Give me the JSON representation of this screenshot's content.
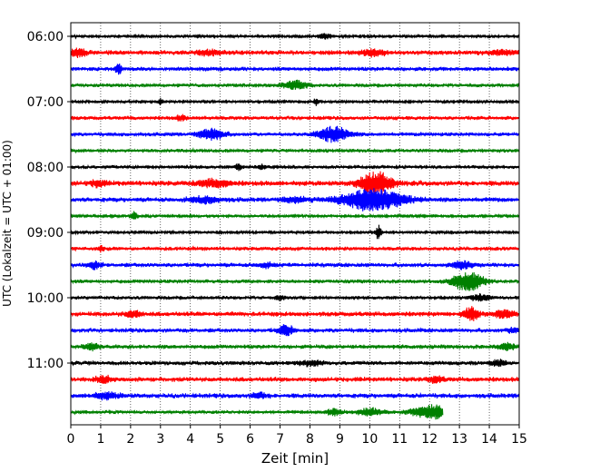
{
  "chart_data": {
    "type": "line",
    "title": "",
    "xlabel": "Zeit  [min]",
    "ylabel": "UTC (Lokalzeit = UTC + 01:00)",
    "xlim": [
      0,
      15
    ],
    "x_ticks": [
      0,
      1,
      2,
      3,
      4,
      5,
      6,
      7,
      8,
      9,
      10,
      11,
      12,
      13,
      14,
      15
    ],
    "y_ticks": [
      "06:00",
      "07:00",
      "08:00",
      "09:00",
      "10:00",
      "11:00"
    ],
    "grid": "vertical dotted",
    "trace_interval_min": 15,
    "first_trace": "06:00",
    "colors": {
      "black": "#000000",
      "red": "#ff0000",
      "blue": "#0000ff",
      "green": "#008000"
    },
    "color_cycle": [
      "black",
      "red",
      "blue",
      "green"
    ],
    "traces": [
      {
        "start": "06:00",
        "color": "black",
        "noise": 0.35,
        "events": [
          [
            8.5,
            0.7,
            0.25
          ]
        ]
      },
      {
        "start": "06:15",
        "color": "red",
        "noise": 0.55,
        "events": [
          [
            0.25,
            1.0,
            0.3
          ],
          [
            4.6,
            0.6,
            0.5
          ],
          [
            10.1,
            0.8,
            0.5
          ],
          [
            14.5,
            0.5,
            0.6
          ]
        ]
      },
      {
        "start": "06:30",
        "color": "blue",
        "noise": 0.5,
        "events": [
          [
            1.6,
            1.3,
            0.12
          ]
        ]
      },
      {
        "start": "06:45",
        "color": "green",
        "noise": 0.4,
        "events": [
          [
            7.5,
            1.2,
            0.5
          ]
        ]
      },
      {
        "start": "07:00",
        "color": "black",
        "noise": 0.35,
        "events": [
          [
            3.0,
            0.8,
            0.1
          ],
          [
            8.2,
            0.9,
            0.1
          ]
        ]
      },
      {
        "start": "07:15",
        "color": "red",
        "noise": 0.45,
        "events": [
          [
            3.7,
            0.7,
            0.2
          ]
        ]
      },
      {
        "start": "07:30",
        "color": "blue",
        "noise": 0.45,
        "events": [
          [
            4.7,
            1.6,
            0.5
          ],
          [
            8.8,
            2.2,
            0.6
          ]
        ]
      },
      {
        "start": "07:45",
        "color": "green",
        "noise": 0.4,
        "events": []
      },
      {
        "start": "08:00",
        "color": "black",
        "noise": 0.4,
        "events": [
          [
            5.6,
            0.8,
            0.15
          ],
          [
            6.4,
            0.6,
            0.2
          ]
        ]
      },
      {
        "start": "08:15",
        "color": "red",
        "noise": 0.6,
        "events": [
          [
            0.9,
            0.8,
            0.3
          ],
          [
            4.8,
            1.0,
            0.6
          ],
          [
            10.2,
            3.4,
            0.6
          ]
        ]
      },
      {
        "start": "08:30",
        "color": "blue",
        "noise": 0.55,
        "events": [
          [
            4.5,
            0.8,
            0.6
          ],
          [
            7.5,
            0.7,
            0.5
          ],
          [
            10.1,
            3.2,
            1.2
          ]
        ]
      },
      {
        "start": "08:45",
        "color": "green",
        "noise": 0.35,
        "events": [
          [
            2.1,
            1.1,
            0.15
          ]
        ]
      },
      {
        "start": "09:00",
        "color": "black",
        "noise": 0.35,
        "events": [
          [
            10.3,
            2.2,
            0.1
          ]
        ]
      },
      {
        "start": "09:15",
        "color": "red",
        "noise": 0.45,
        "events": [
          [
            1.0,
            0.8,
            0.1
          ]
        ]
      },
      {
        "start": "09:30",
        "color": "blue",
        "noise": 0.5,
        "events": [
          [
            0.8,
            1.0,
            0.25
          ],
          [
            6.5,
            0.6,
            0.3
          ],
          [
            13.1,
            1.1,
            0.4
          ]
        ]
      },
      {
        "start": "09:45",
        "color": "green",
        "noise": 0.45,
        "events": [
          [
            13.3,
            2.8,
            0.6
          ]
        ]
      },
      {
        "start": "10:00",
        "color": "black",
        "noise": 0.4,
        "events": [
          [
            7.0,
            0.6,
            0.2
          ],
          [
            13.7,
            0.9,
            0.4
          ]
        ]
      },
      {
        "start": "10:15",
        "color": "red",
        "noise": 0.55,
        "events": [
          [
            2.1,
            0.9,
            0.3
          ],
          [
            13.4,
            1.8,
            0.3
          ],
          [
            14.5,
            1.0,
            0.4
          ]
        ]
      },
      {
        "start": "10:30",
        "color": "blue",
        "noise": 0.5,
        "events": [
          [
            7.2,
            1.4,
            0.3
          ],
          [
            14.8,
            0.8,
            0.2
          ]
        ]
      },
      {
        "start": "10:45",
        "color": "green",
        "noise": 0.5,
        "events": [
          [
            0.7,
            0.9,
            0.3
          ],
          [
            14.6,
            0.9,
            0.3
          ]
        ]
      },
      {
        "start": "11:00",
        "color": "black",
        "noise": 0.5,
        "events": [
          [
            8.0,
            0.6,
            0.5
          ],
          [
            14.3,
            0.7,
            0.3
          ]
        ]
      },
      {
        "start": "11:15",
        "color": "red",
        "noise": 0.55,
        "events": [
          [
            1.1,
            0.9,
            0.3
          ],
          [
            12.2,
            0.8,
            0.3
          ]
        ]
      },
      {
        "start": "11:30",
        "color": "blue",
        "noise": 0.55,
        "events": [
          [
            1.2,
            0.8,
            0.5
          ],
          [
            6.3,
            0.7,
            0.3
          ]
        ]
      },
      {
        "start": "11:45",
        "color": "green",
        "noise": 0.4,
        "end": 12.45,
        "events": [
          [
            8.8,
            1.0,
            0.3
          ],
          [
            10.0,
            1.1,
            0.5
          ],
          [
            12.1,
            2.0,
            0.8
          ]
        ]
      }
    ]
  }
}
